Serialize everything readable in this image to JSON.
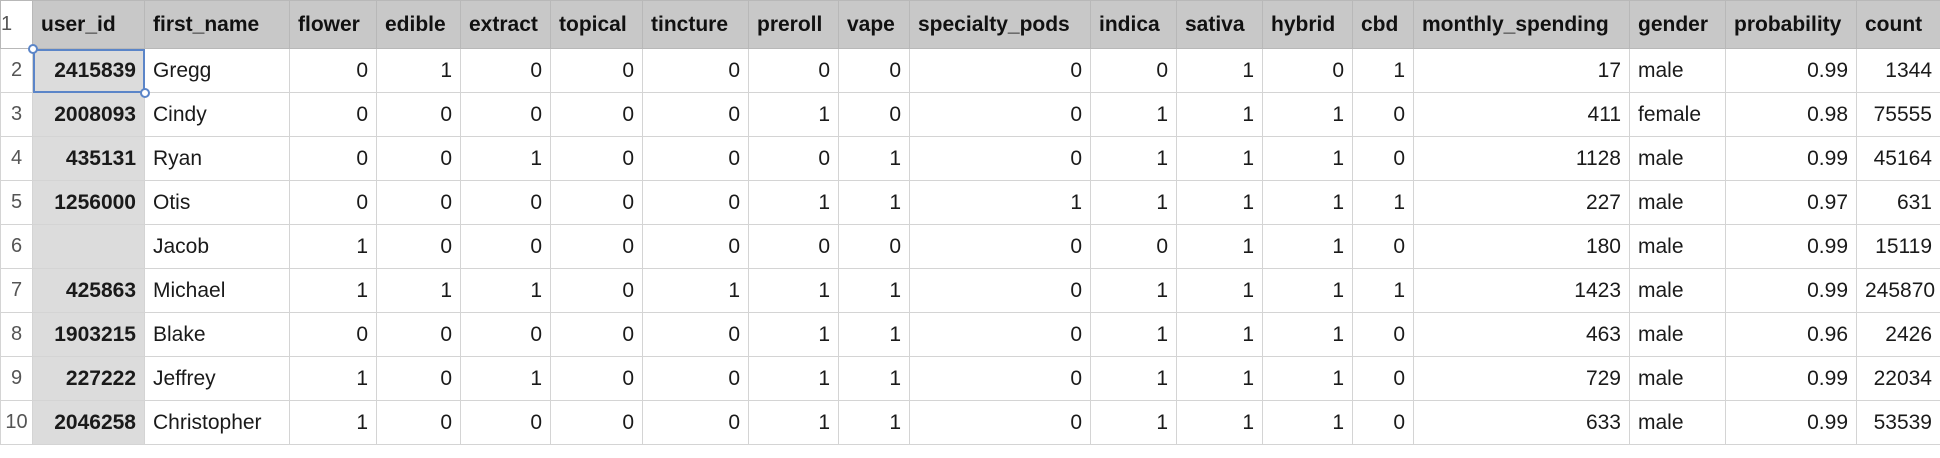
{
  "columns": [
    "user_id",
    "first_name",
    "flower",
    "edible",
    "extract",
    "topical",
    "tincture",
    "preroll",
    "vape",
    "specialty_pods",
    "indica",
    "sativa",
    "hybrid",
    "cbd",
    "monthly_spending",
    "gender",
    "probability",
    "count"
  ],
  "header_row_number": "1",
  "rows": [
    {
      "n": "2",
      "cells": [
        "2415839",
        "Gregg",
        "0",
        "1",
        "0",
        "0",
        "0",
        "0",
        "0",
        "0",
        "0",
        "1",
        "0",
        "1",
        "17",
        "male",
        "0.99",
        "1344"
      ]
    },
    {
      "n": "3",
      "cells": [
        "2008093",
        "Cindy",
        "0",
        "0",
        "0",
        "0",
        "0",
        "1",
        "0",
        "0",
        "1",
        "1",
        "1",
        "0",
        "411",
        "female",
        "0.98",
        "75555"
      ]
    },
    {
      "n": "4",
      "cells": [
        "435131",
        "Ryan",
        "0",
        "0",
        "1",
        "0",
        "0",
        "0",
        "1",
        "0",
        "1",
        "1",
        "1",
        "0",
        "1128",
        "male",
        "0.99",
        "45164"
      ]
    },
    {
      "n": "5",
      "cells": [
        "1256000",
        "Otis",
        "0",
        "0",
        "0",
        "0",
        "0",
        "1",
        "1",
        "1",
        "1",
        "1",
        "1",
        "1",
        "227",
        "male",
        "0.97",
        "631"
      ]
    },
    {
      "n": "6",
      "cells": [
        "",
        "Jacob",
        "1",
        "0",
        "0",
        "0",
        "0",
        "0",
        "0",
        "0",
        "0",
        "1",
        "1",
        "0",
        "180",
        "male",
        "0.99",
        "15119"
      ]
    },
    {
      "n": "7",
      "cells": [
        "425863",
        "Michael",
        "1",
        "1",
        "1",
        "0",
        "1",
        "1",
        "1",
        "0",
        "1",
        "1",
        "1",
        "1",
        "1423",
        "male",
        "0.99",
        "245870"
      ]
    },
    {
      "n": "8",
      "cells": [
        "1903215",
        "Blake",
        "0",
        "0",
        "0",
        "0",
        "0",
        "1",
        "1",
        "0",
        "1",
        "1",
        "1",
        "0",
        "463",
        "male",
        "0.96",
        "2426"
      ]
    },
    {
      "n": "9",
      "cells": [
        "227222",
        "Jeffrey",
        "1",
        "0",
        "1",
        "0",
        "0",
        "1",
        "1",
        "0",
        "1",
        "1",
        "1",
        "0",
        "729",
        "male",
        "0.99",
        "22034"
      ]
    },
    {
      "n": "10",
      "cells": [
        "2046258",
        "Christopher",
        "1",
        "0",
        "0",
        "0",
        "0",
        "1",
        "1",
        "0",
        "1",
        "1",
        "1",
        "0",
        "633",
        "male",
        "0.99",
        "53539"
      ]
    }
  ]
}
